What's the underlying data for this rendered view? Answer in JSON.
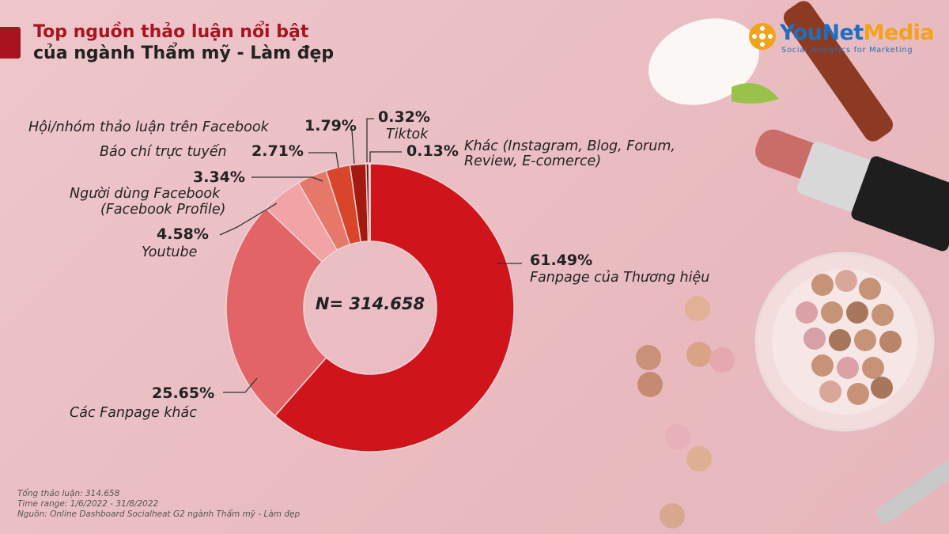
{
  "title": {
    "line1": "Top nguồn thảo luận nổi bật",
    "line2": "của ngành Thẩm mỹ - Làm đẹp"
  },
  "logo": {
    "brand_a": "YouNet",
    "brand_b": "Media",
    "tagline": "Social Analytics for Marketing"
  },
  "footer": {
    "line1": "Tổng thảo luận: 314.658",
    "line2": "Time range: 1/6/2022 - 31/8/2022",
    "line3": "Nguồn: Online Dashboard Socialheat G2 ngành Thẩm mỹ - Làm đẹp"
  },
  "chart_data": {
    "type": "pie",
    "donut": true,
    "center_label": "N= 314.658",
    "slices": [
      {
        "label": "Fanpage của Thương hiệu",
        "pct_label": "61.49%",
        "value": 61.49,
        "color": "#d0141c"
      },
      {
        "label": "Các Fanpage khác",
        "pct_label": "25.65%",
        "value": 25.65,
        "color": "#e26466"
      },
      {
        "label": "Youtube",
        "pct_label": "4.58%",
        "value": 4.58,
        "color": "#f1a3a6"
      },
      {
        "label": "Người dùng Facebook (Facebook Profile)",
        "label_line1": "Người dùng Facebook",
        "label_line2": "(Facebook Profile)",
        "pct_label": "3.34%",
        "value": 3.34,
        "color": "#e6786a"
      },
      {
        "label": "Báo chí trực tuyến",
        "pct_label": "2.71%",
        "value": 2.71,
        "color": "#d9452a"
      },
      {
        "label": "Hội/nhóm thảo luận trên Facebook",
        "pct_label": "1.79%",
        "value": 1.79,
        "color": "#a51a10"
      },
      {
        "label": "Tiktok",
        "pct_label": "0.32%",
        "value": 0.32,
        "color": "#7a0e08"
      },
      {
        "label": "Khác (Instagram, Blog, Forum, Review, E-comerce)",
        "label_line1": "Khác (Instagram, Blog, Forum,",
        "label_line2": "Review, E-comerce)",
        "pct_label": "0.13%",
        "value": 0.13,
        "color": "#5a0906"
      }
    ]
  }
}
